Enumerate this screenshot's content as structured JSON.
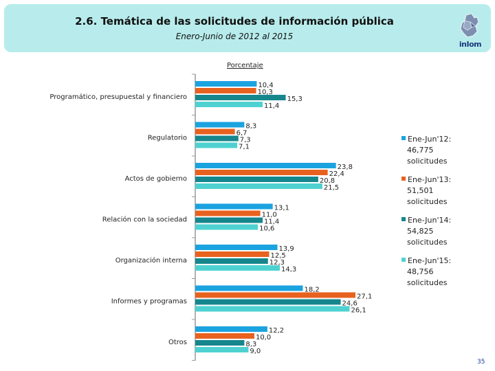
{
  "header": {
    "title": "2.6. Temática de las solicitudes de información pública",
    "subtitle": "Enero-Junio de 2012 al 2015",
    "logo_text": "inIom"
  },
  "page_number": "35",
  "chart_data": {
    "type": "bar",
    "orientation": "horizontal",
    "title": "2.6. Temática de las solicitudes de información pública",
    "subtitle": "Enero-Junio de 2012 al 2015",
    "ylabel": "Porcentaje",
    "xlim": [
      0,
      30
    ],
    "grid": false,
    "legend_position": "right",
    "categories": [
      "Programático, presupuestal y financiero",
      "Regulatorio",
      "Actos de gobierno",
      "Relación con la sociedad",
      "Organización interna",
      "Informes y programas",
      "Otros"
    ],
    "series": [
      {
        "name": "Ene-Jun'12",
        "legend_lines": [
          "Ene-Jun'12:",
          "46,775",
          "solicitudes"
        ],
        "color": "#1ba3e0",
        "values": [
          10.4,
          8.3,
          23.8,
          13.1,
          13.9,
          18.2,
          12.2
        ],
        "labels": [
          "10,4",
          "8,3",
          "23,8",
          "13,1",
          "13,9",
          "18,2",
          "12,2"
        ]
      },
      {
        "name": "Ene-Jun'13",
        "legend_lines": [
          "Ene-Jun'13:",
          "51,501",
          "solicitudes"
        ],
        "color": "#e8621f",
        "values": [
          10.3,
          6.7,
          22.4,
          11.0,
          12.5,
          27.1,
          10.0
        ],
        "labels": [
          "10,3",
          "6,7",
          "22,4",
          "11,0",
          "12,5",
          "27,1",
          "10,0"
        ]
      },
      {
        "name": "Ene-Jun'14",
        "legend_lines": [
          "Ene-Jun'14:",
          "54,825",
          "solicitudes"
        ],
        "color": "#16868d",
        "values": [
          15.3,
          7.3,
          20.8,
          11.4,
          12.3,
          24.6,
          8.3
        ],
        "labels": [
          "15,3",
          "7,3",
          "20,8",
          "11,4",
          "12,3",
          "24,6",
          "8,3"
        ]
      },
      {
        "name": "Ene-Jun'15",
        "legend_lines": [
          "Ene-Jun'15:",
          "48,756",
          "solicitudes"
        ],
        "color": "#4fd1d1",
        "values": [
          11.4,
          7.1,
          21.5,
          10.6,
          14.3,
          26.1,
          9.0
        ],
        "labels": [
          "11,4",
          "7,1",
          "21,5",
          "10,6",
          "14,3",
          "26,1",
          "9,0"
        ]
      }
    ]
  }
}
